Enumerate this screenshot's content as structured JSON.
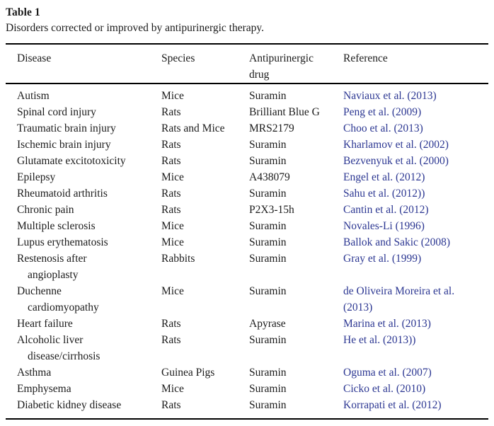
{
  "table": {
    "label": "Table 1",
    "caption": "Disorders corrected or improved by antipurinergic therapy.",
    "columns": [
      "Disease",
      "Species",
      "Antipurinergic\ndrug",
      "Reference"
    ],
    "rows": [
      {
        "disease": "Autism",
        "species": "Mice",
        "drug": "Suramin",
        "reference": "Naviaux et al. (2013)"
      },
      {
        "disease": "Spinal cord injury",
        "species": "Rats",
        "drug": "Brilliant Blue G",
        "reference": "Peng et al. (2009)"
      },
      {
        "disease": "Traumatic brain injury",
        "species": "Rats and Mice",
        "drug": "MRS2179",
        "reference": "Choo et al. (2013)"
      },
      {
        "disease": "Ischemic brain injury",
        "species": "Rats",
        "drug": "Suramin",
        "reference": "Kharlamov et al. (2002)"
      },
      {
        "disease": "Glutamate excitotoxicity",
        "species": "Rats",
        "drug": "Suramin",
        "reference": "Bezvenyuk et al. (2000)"
      },
      {
        "disease": "Epilepsy",
        "species": "Mice",
        "drug": "A438079",
        "reference": "Engel et al. (2012)"
      },
      {
        "disease": "Rheumatoid arthritis",
        "species": "Rats",
        "drug": "Suramin",
        "reference": "Sahu et al. (2012))"
      },
      {
        "disease": "Chronic pain",
        "species": "Rats",
        "drug": "P2X3-15h",
        "reference": "Cantin et al. (2012)"
      },
      {
        "disease": "Multiple sclerosis",
        "species": "Mice",
        "drug": "Suramin",
        "reference": "Novales-Li (1996)"
      },
      {
        "disease": "Lupus erythematosis",
        "species": "Mice",
        "drug": "Suramin",
        "reference": "Ballok and Sakic (2008)"
      },
      {
        "disease": "Restenosis after\nangioplasty",
        "species": "Rabbits",
        "drug": "Suramin",
        "reference": "Gray et al. (1999)"
      },
      {
        "disease": "Duchenne\ncardiomyopathy",
        "species": "Mice",
        "drug": "Suramin",
        "reference": "de Oliveira Moreira et al.\n(2013)"
      },
      {
        "disease": "Heart failure",
        "species": "Rats",
        "drug": "Apyrase",
        "reference": "Marina et al. (2013)"
      },
      {
        "disease": "Alcoholic liver\ndisease/cirrhosis",
        "species": "Rats",
        "drug": "Suramin",
        "reference": "He et al. (2013))"
      },
      {
        "disease": "Asthma",
        "species": "Guinea Pigs",
        "drug": "Suramin",
        "reference": "Oguma et al. (2007)"
      },
      {
        "disease": "Emphysema",
        "species": "Mice",
        "drug": "Suramin",
        "reference": "Cicko et al. (2010)"
      },
      {
        "disease": "Diabetic kidney disease",
        "species": "Rats",
        "drug": "Suramin",
        "reference": "Korrapati et al. (2012)"
      }
    ],
    "colors": {
      "link": "#2c3792",
      "text": "#1b1b1b",
      "rule": "#000000"
    }
  }
}
